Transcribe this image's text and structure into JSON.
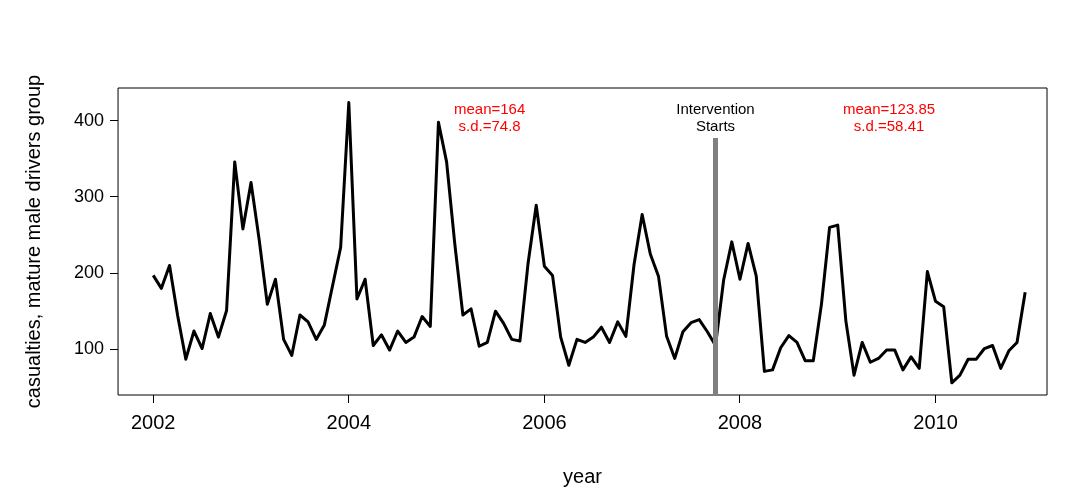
{
  "chart_data": {
    "type": "line",
    "xlabel": "year",
    "ylabel": "casualties, mature male drivers group",
    "x": [
      2002,
      2002.0833,
      2002.1667,
      2002.25,
      2002.3333,
      2002.4167,
      2002.5,
      2002.5833,
      2002.6667,
      2002.75,
      2002.8333,
      2002.9167,
      2003,
      2003.0833,
      2003.1667,
      2003.25,
      2003.3333,
      2003.4167,
      2003.5,
      2003.5833,
      2003.6667,
      2003.75,
      2003.8333,
      2003.9167,
      2004,
      2004.0833,
      2004.1667,
      2004.25,
      2004.3333,
      2004.4167,
      2004.5,
      2004.5833,
      2004.6667,
      2004.75,
      2004.8333,
      2004.9167,
      2005,
      2005.0833,
      2005.1667,
      2005.25,
      2005.3333,
      2005.4167,
      2005.5,
      2005.5833,
      2005.6667,
      2005.75,
      2005.8333,
      2005.9167,
      2006,
      2006.0833,
      2006.1667,
      2006.25,
      2006.3333,
      2006.4167,
      2006.5,
      2006.5833,
      2006.6667,
      2006.75,
      2006.8333,
      2006.9167,
      2007,
      2007.0833,
      2007.1667,
      2007.25,
      2007.3333,
      2007.4167,
      2007.5,
      2007.5833,
      2007.6667,
      2007.75,
      2007.8333,
      2007.9167,
      2008,
      2008.0833,
      2008.1667,
      2008.25,
      2008.3333,
      2008.4167,
      2008.5,
      2008.5833,
      2008.6667,
      2008.75,
      2008.8333,
      2008.9167,
      2009,
      2009.0833,
      2009.1667,
      2009.25,
      2009.3333,
      2009.4167,
      2009.5,
      2009.5833,
      2009.6667,
      2009.75,
      2009.8333,
      2009.9167,
      2010,
      2010.0833,
      2010.1667,
      2010.25,
      2010.3333,
      2010.4167,
      2010.5,
      2010.5833,
      2010.6667,
      2010.75,
      2010.8333,
      2010.9167
    ],
    "series": [
      {
        "color": "#000000",
        "values": [
          197,
          180,
          210,
          144,
          87,
          124,
          101,
          147,
          116,
          151,
          346,
          258,
          319,
          244,
          159,
          192,
          113,
          92,
          145,
          136,
          113,
          132,
          183,
          234,
          424,
          166,
          192,
          105,
          119,
          99,
          124,
          109,
          116,
          143,
          130,
          398,
          346,
          239,
          145,
          153,
          104,
          109,
          150,
          134,
          113,
          111,
          213,
          289,
          209,
          197,
          116,
          79,
          113,
          109,
          116,
          129,
          109,
          136,
          117,
          211,
          277,
          225,
          196,
          117,
          88,
          123,
          135,
          139,
          123,
          105,
          191,
          241,
          192,
          239,
          196,
          71,
          73,
          102,
          118,
          109,
          85,
          85,
          159,
          260,
          263,
          137,
          66,
          109,
          83,
          88,
          99,
          99,
          73,
          90,
          75,
          202,
          163,
          156,
          56,
          66,
          87,
          87,
          101,
          105,
          75,
          98,
          109,
          175
        ]
      }
    ],
    "xlim": [
      2001.64,
      2011.14
    ],
    "xticks": [
      2002,
      2004,
      2006,
      2008,
      2010
    ],
    "ylim": [
      40,
      443
    ],
    "yticks": [
      100,
      200,
      300,
      400
    ],
    "grid": false,
    "legend": false,
    "ref_lines": [
      {
        "axis": "x",
        "value": 2007.75,
        "label": "Intervention\nStarts",
        "color": "#808080"
      }
    ],
    "annotations": [
      "mean=164\ns.d.=74.8",
      "mean=123.85\ns.d.=58.41"
    ]
  }
}
